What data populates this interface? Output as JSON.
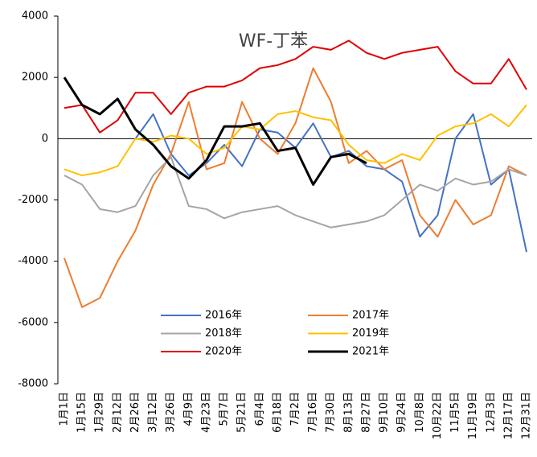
{
  "chart_data": {
    "type": "line",
    "title": "WF-丁苯",
    "categories": [
      "1月1日",
      "1月15日",
      "1月29日",
      "2月12日",
      "2月26日",
      "3月12日",
      "3月26日",
      "4月9日",
      "4月23日",
      "5月7日",
      "5月21日",
      "6月4日",
      "6月18日",
      "7月2日",
      "7月16日",
      "7月30日",
      "8月13日",
      "8月27日",
      "9月10日",
      "9月24日",
      "10月8日",
      "10月22日",
      "11月5日",
      "11月19日",
      "12月3日",
      "12月17日",
      "12月31日"
    ],
    "series": [
      {
        "name": "2016年",
        "color": "#4472c4",
        "values": [
          null,
          null,
          null,
          null,
          0,
          800,
          -500,
          -1200,
          -800,
          -200,
          -900,
          300,
          200,
          -300,
          500,
          -600,
          -400,
          -900,
          -1000,
          -1400,
          -3200,
          -2500,
          0,
          800,
          -1500,
          -1000,
          -3700
        ]
      },
      {
        "name": "2017年",
        "color": "#ed7d31",
        "values": [
          -3900,
          -5500,
          -5200,
          -4000,
          -3000,
          -1500,
          -500,
          1200,
          -1000,
          -800,
          1200,
          0,
          -500,
          500,
          2300,
          1200,
          -800,
          -400,
          -1000,
          -700,
          -2500,
          -3200,
          -2000,
          -2800,
          -2500,
          -900,
          -1200
        ]
      },
      {
        "name": "2018年",
        "color": "#a5a5a5",
        "values": [
          -1200,
          -1500,
          -2300,
          -2400,
          -2200,
          -1200,
          -600,
          -2200,
          -2300,
          -2600,
          -2400,
          -2300,
          -2200,
          -2500,
          -2700,
          -2900,
          -2800,
          -2700,
          -2500,
          -2000,
          -1500,
          -1700,
          -1300,
          -1500,
          -1400,
          -1000,
          -1200
        ]
      },
      {
        "name": "2019年",
        "color": "#ffc000",
        "values": [
          -1000,
          -1200,
          -1100,
          -900,
          0,
          -100,
          100,
          0,
          -500,
          -300,
          400,
          300,
          800,
          900,
          700,
          600,
          -200,
          -700,
          -800,
          -500,
          -700,
          100,
          400,
          500,
          800,
          400,
          1100
        ]
      },
      {
        "name": "2020年",
        "color": "#e00000",
        "values": [
          1000,
          1100,
          200,
          600,
          1500,
          1500,
          800,
          1500,
          1700,
          1700,
          1900,
          2300,
          2400,
          2600,
          3000,
          2900,
          3200,
          2800,
          2600,
          2800,
          2900,
          3000,
          2200,
          1800,
          1800,
          2600,
          1600
        ]
      },
      {
        "name": "2021年",
        "color": "#000000",
        "values": [
          2000,
          1100,
          800,
          1300,
          300,
          -200,
          -900,
          -1300,
          -700,
          400,
          400,
          500,
          -400,
          -300,
          -1500,
          -600,
          -500,
          -800,
          null,
          null,
          null,
          null,
          null,
          null,
          null,
          null,
          null
        ]
      }
    ],
    "ylim": [
      -8000,
      4000
    ],
    "yticks": [
      4000,
      2000,
      0,
      -2000,
      -4000,
      -6000,
      -8000
    ]
  }
}
